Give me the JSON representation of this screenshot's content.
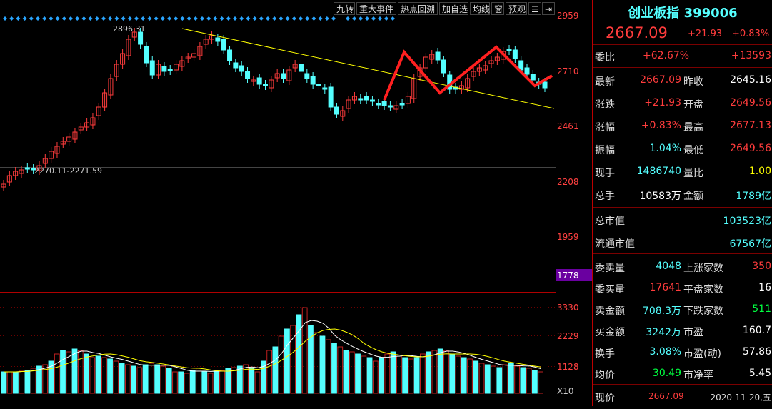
{
  "toolbar": {
    "items": [
      "九转",
      "重大事件",
      "热点回溯",
      "加自选",
      "均线",
      "窗",
      "预观"
    ]
  },
  "index": {
    "name": "创业板指",
    "code": "399006",
    "price": "2667.09",
    "change": "+21.93",
    "change_pct": "+0.83%"
  },
  "quote": {
    "weibi_label": "委比",
    "weibi_pct": "+62.67%",
    "weibi_val": "+13593",
    "zuixin_label": "最新",
    "zuixin": "2667.09",
    "zuoshou_label": "昨收",
    "zuoshou": "2645.16",
    "zhangdie_label": "涨跌",
    "zhangdie": "+21.93",
    "kaipan_label": "开盘",
    "kaipan": "2649.56",
    "zhangfu_label": "涨幅",
    "zhangfu": "+0.83%",
    "zuigao_label": "最高",
    "zuigao": "2677.13",
    "zhenfu_label": "振幅",
    "zhenfu": "1.04%",
    "zuidi_label": "最低",
    "zuidi": "2649.56",
    "xianshou_label": "现手",
    "xianshou": "1486740",
    "liangbi_label": "量比",
    "liangbi": "1.00",
    "zongshou_label": "总手",
    "zongshou": "10583万",
    "jine_label": "金额",
    "jine": "1789亿",
    "zongshizhi_label": "总市值",
    "zongshizhi": "103523亿",
    "liutong_label": "流通市值",
    "liutong": "67567亿",
    "weimai_label": "委卖量",
    "weimai": "4048",
    "shangzhang_label": "上涨家数",
    "shangzhang": "350",
    "weimai2_label": "委买量",
    "weimai2": "17641",
    "pingpan_label": "平盘家数",
    "pingpan": "16",
    "maijine_label": "卖金额",
    "maijine": "708.3万",
    "xiadie_label": "下跌家数",
    "xiadie": "511",
    "buyjine_label": "买金额",
    "buyjine": "3242万",
    "shiying_label": "市盈",
    "shiying": "160.7",
    "huanshou_label": "换手",
    "huanshou": "3.08%",
    "shiyingdong_label": "市盈(动)",
    "shiyingdong": "57.86",
    "junjia_label": "均价",
    "junjia": "30.49",
    "shijinglv_label": "市净率",
    "shijinglv": "5.45"
  },
  "footer": {
    "label": "现价",
    "price": "2667.09",
    "date": "2020-11-20,五"
  },
  "axes": {
    "price_ticks": [
      "2959",
      "2710",
      "2461",
      "2208",
      "1959"
    ],
    "cursor_price": "1778",
    "volume_ticks": [
      "3330",
      "2229",
      "1128"
    ],
    "volume_unit": "X10"
  },
  "annotations": {
    "high": "2896.31",
    "low": "2270.11-2271.59"
  },
  "colors": {
    "up": "#ff3c3c",
    "down": "#54ffff",
    "ma5": "#ffffff",
    "ma10": "#ffff00"
  }
}
